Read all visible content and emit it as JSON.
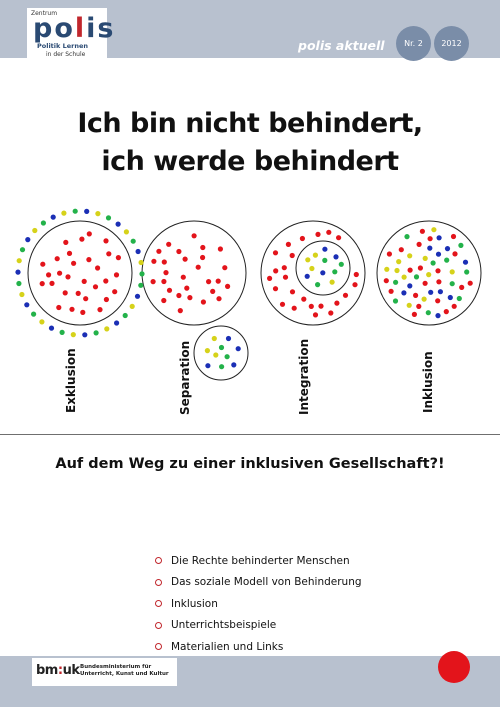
{
  "header": {
    "logo": {
      "zentrum": "Zentrum",
      "po": "po",
      "l": "l",
      "is": "is",
      "line1": "Politik Lernen",
      "line2": "in der Schule"
    },
    "series": "polis aktuell",
    "issue": "Nr. 2",
    "year": "2012"
  },
  "title": {
    "line1": "Ich bin nicht behindert,",
    "line2": "ich werde behindert"
  },
  "diagram": {
    "labels": [
      "Exklusion",
      "Separation",
      "Integration",
      "Inklusion"
    ],
    "dot_colors": {
      "red": "#e3141b",
      "green": "#23b24a",
      "blue": "#1b2fb5",
      "yellow": "#d6d21a"
    }
  },
  "subtitle": "Auf dem Weg zu einer inklusiven Gesellschaft?!",
  "toc": [
    "Die Rechte behinderter Menschen",
    "Das soziale Modell von Behinderung",
    "Inklusion",
    "Unterrichtsbeispiele",
    "Materialien und Links"
  ],
  "footer": {
    "bm_logo": {
      "bm": "bm",
      "colon": ":",
      "uk": "uk"
    },
    "ministry_line1": "Bundesministerium für",
    "ministry_line2": "Unterricht, Kunst und Kultur"
  }
}
